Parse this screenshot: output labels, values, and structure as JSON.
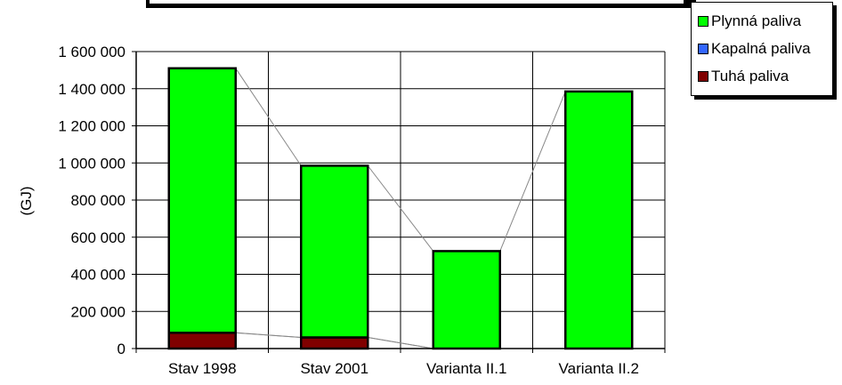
{
  "chart_data": {
    "type": "bar",
    "stacked": true,
    "categories": [
      "Stav 1998",
      "Stav 2001",
      "Varianta II.1",
      "Varianta II.2"
    ],
    "series": [
      {
        "name": "Tuhá paliva",
        "color": "#800000",
        "values": [
          85000,
          60000,
          0,
          0
        ]
      },
      {
        "name": "Kapalná paliva",
        "color": "#3366ff",
        "values": [
          0,
          0,
          0,
          0
        ]
      },
      {
        "name": "Plynná paliva",
        "color": "#00ff00",
        "values": [
          1425000,
          925000,
          525000,
          1385000
        ]
      }
    ],
    "legend_order": [
      "Plynná paliva",
      "Kapalná paliva",
      "Tuhá paliva"
    ],
    "ylabel": "(GJ)",
    "ylim": [
      0,
      1600000
    ],
    "yticks": [
      0,
      200000,
      400000,
      600000,
      800000,
      1000000,
      1200000,
      1400000,
      1600000
    ],
    "ytick_labels": [
      "0",
      "200 000",
      "400 000",
      "600 000",
      "800 000",
      "1 000 000",
      "1 200 000",
      "1 400 000",
      "1 600 000"
    ],
    "grid": true,
    "series_lines": true,
    "legend_position": "top-right"
  }
}
